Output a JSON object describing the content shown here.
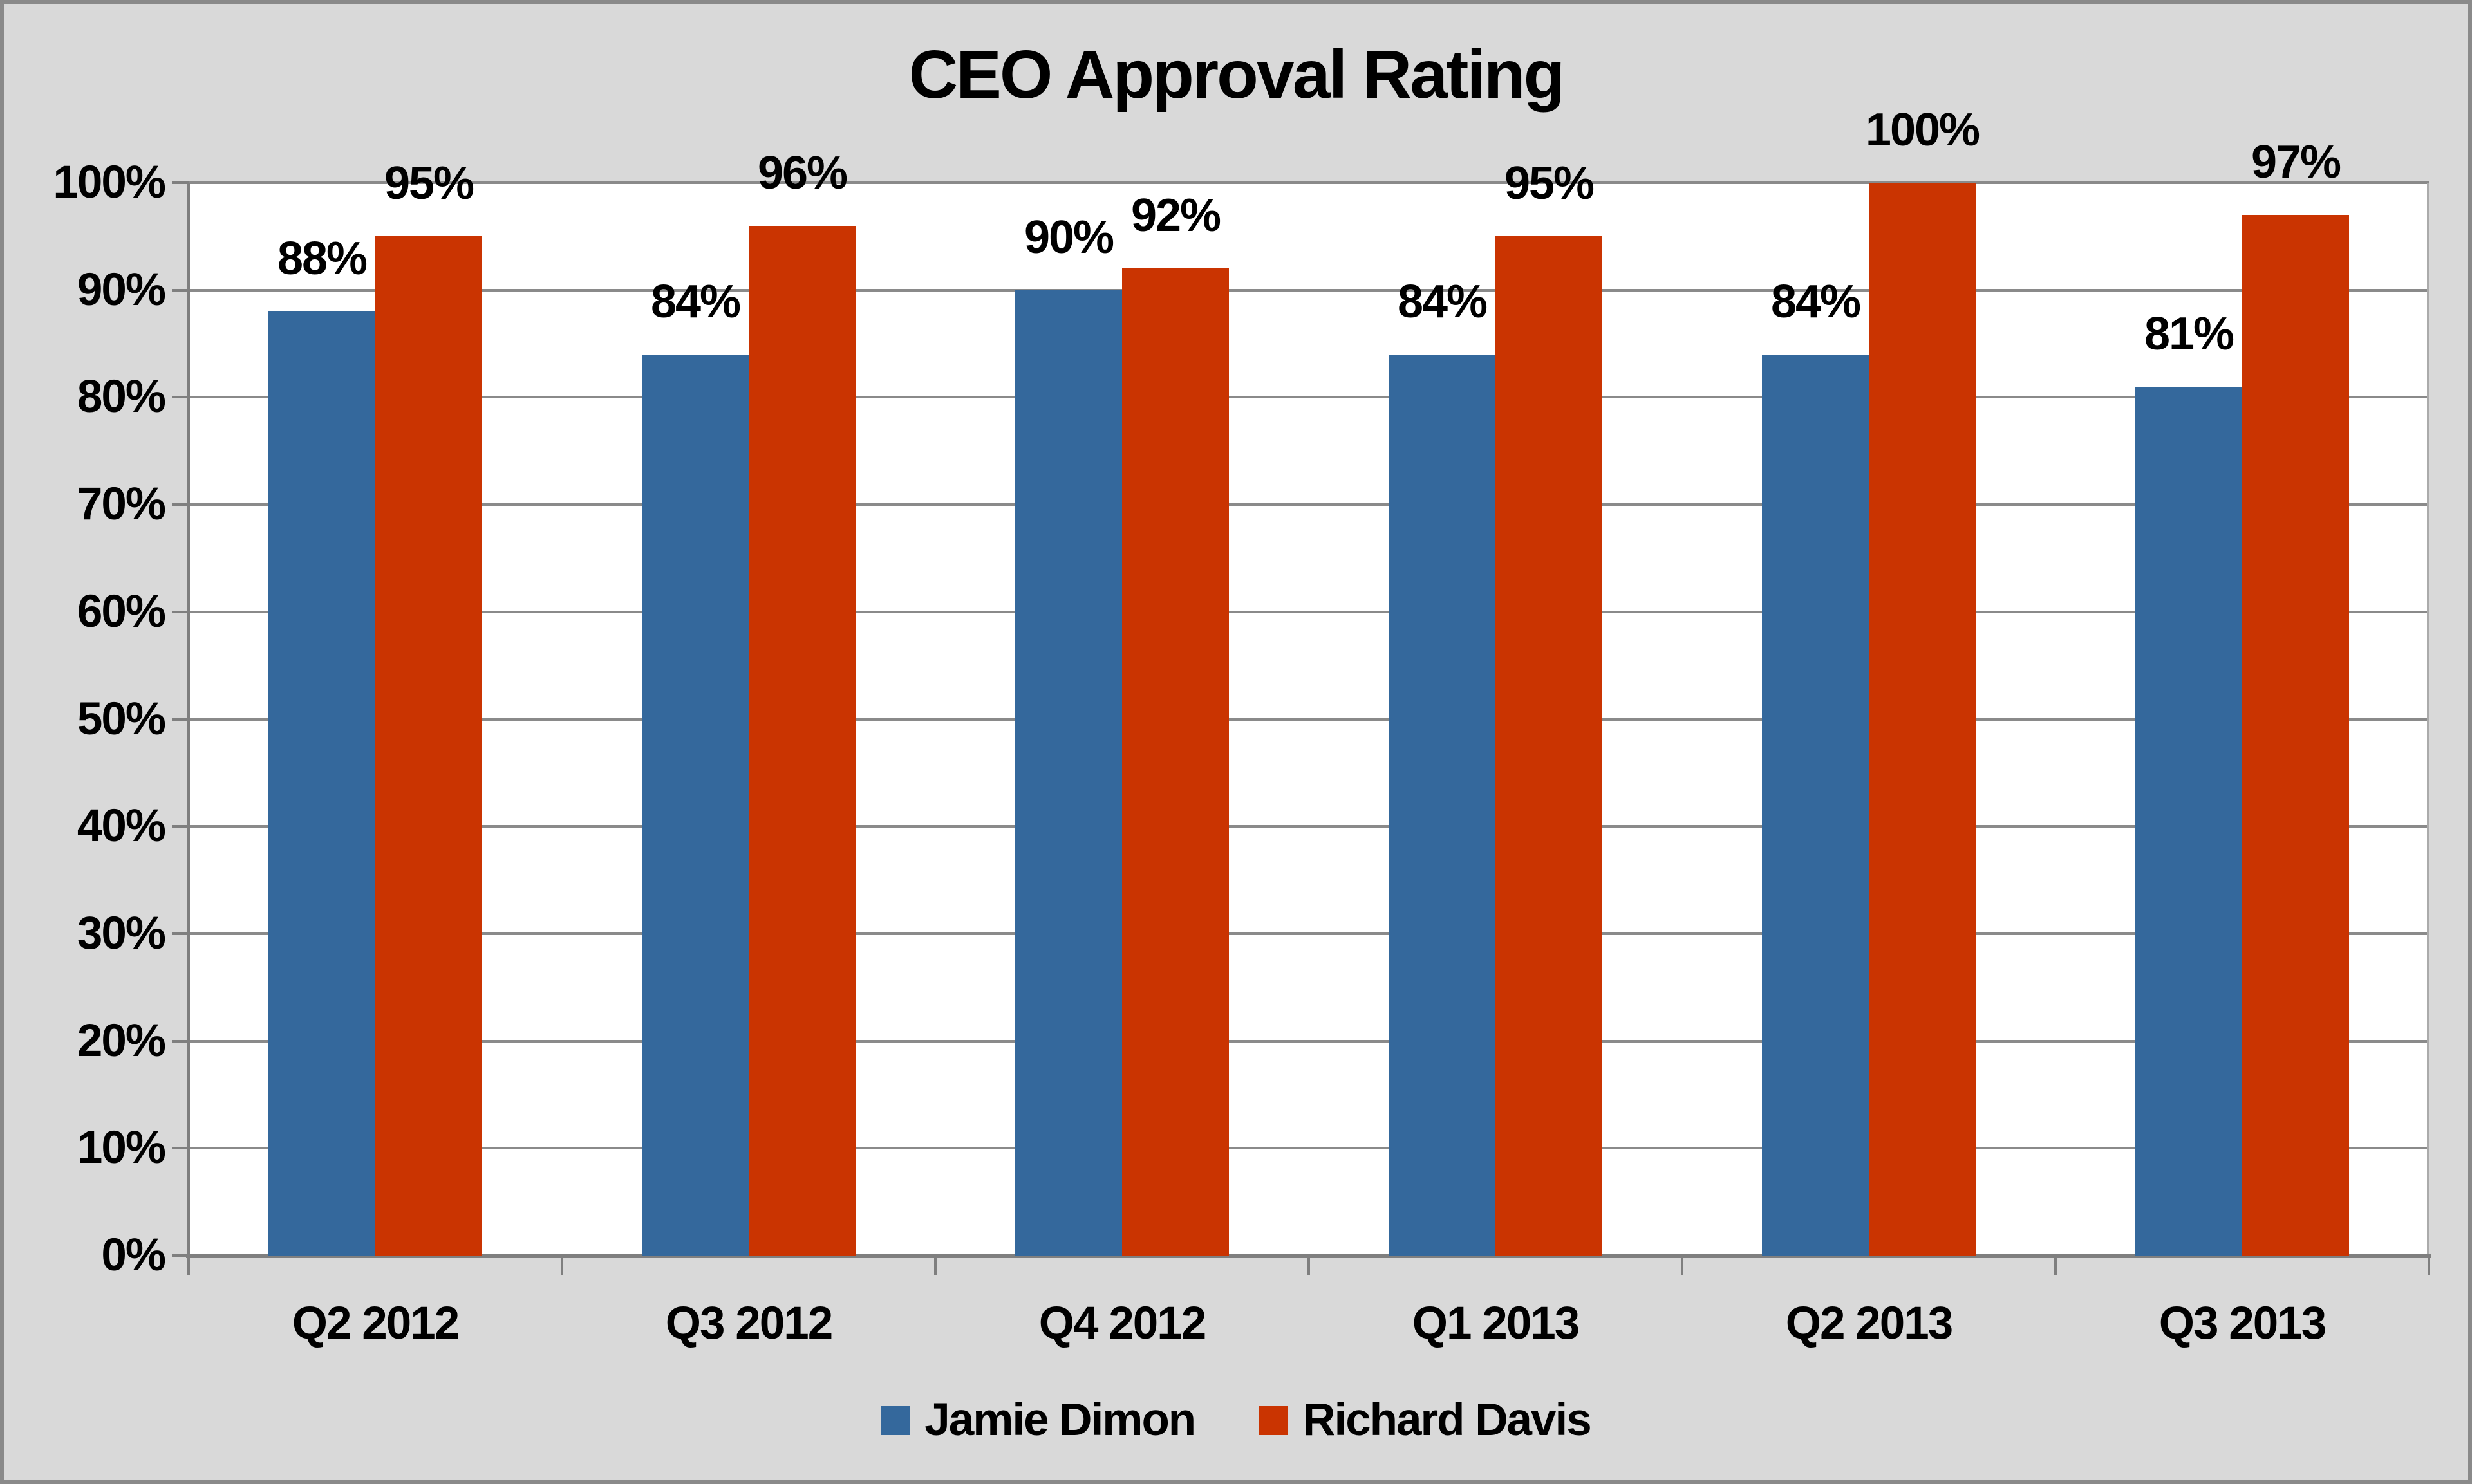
{
  "chart_data": {
    "type": "bar",
    "title": "CEO Approval Rating",
    "categories": [
      "Q2 2012",
      "Q3 2012",
      "Q4 2012",
      "Q1 2013",
      "Q2 2013",
      "Q3 2013"
    ],
    "series": [
      {
        "name": "Jamie Dimon",
        "color": "#34689C",
        "values": [
          88,
          84,
          90,
          84,
          84,
          81
        ],
        "data_labels": [
          "88%",
          "84%",
          "90%",
          "84%",
          "84%",
          "81%"
        ]
      },
      {
        "name": "Richard Davis",
        "color": "#CA3401",
        "values": [
          95,
          96,
          92,
          95,
          100,
          97
        ],
        "data_labels": [
          "95%",
          "96%",
          "92%",
          "95%",
          "100%",
          "97%"
        ]
      }
    ],
    "xlabel": "",
    "ylabel": "",
    "ylim": [
      0,
      100
    ],
    "ytick_step": 10,
    "yticks": [
      "0%",
      "10%",
      "20%",
      "30%",
      "40%",
      "50%",
      "60%",
      "70%",
      "80%",
      "90%",
      "100%"
    ],
    "grid": true,
    "legend_position": "bottom"
  },
  "colors": {
    "background": "#D9D9D9",
    "frame_border": "#8A8A8A",
    "plot_background": "#FFFFFF",
    "gridline": "#8A8A8A",
    "axis": "#7F7F7F",
    "plot_right_edge": "#ABABAB",
    "text": "#000000"
  }
}
